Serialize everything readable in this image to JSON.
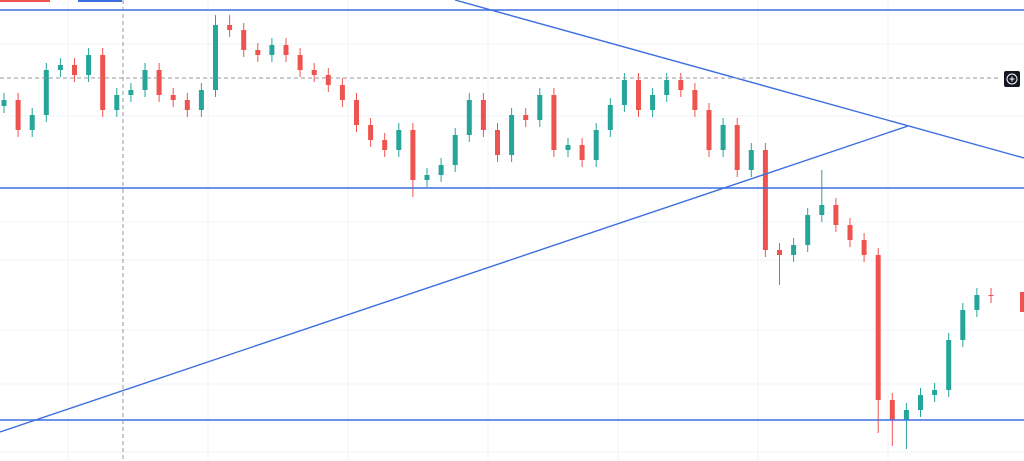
{
  "chart_data": {
    "type": "candlestick",
    "ylim": [
      0,
      461
    ],
    "up_color": "#26a69a",
    "down_color": "#ef5350",
    "open": [
      355,
      361,
      331,
      346,
      391,
      396,
      386,
      406,
      351,
      366,
      371,
      391,
      366,
      361,
      351,
      371,
      436,
      431,
      411,
      406,
      416,
      406,
      391,
      386,
      376,
      361,
      336,
      321,
      311,
      331,
      281,
      286,
      296,
      326,
      361,
      331,
      306,
      346,
      341,
      366,
      311,
      316,
      301,
      331,
      356,
      381,
      351,
      366,
      381,
      371,
      351,
      311,
      336,
      291,
      311,
      211,
      206,
      216,
      246,
      256,
      236,
      221,
      206,
      61,
      41,
      51,
      66,
      71,
      121,
      151,
      166
    ],
    "high": [
      368,
      368,
      353,
      398,
      403,
      403,
      413,
      413,
      373,
      378,
      398,
      398,
      373,
      368,
      378,
      446,
      446,
      438,
      418,
      423,
      423,
      413,
      398,
      393,
      383,
      368,
      343,
      328,
      338,
      338,
      293,
      303,
      333,
      368,
      368,
      338,
      353,
      353,
      373,
      373,
      323,
      323,
      338,
      363,
      388,
      388,
      373,
      388,
      388,
      378,
      358,
      343,
      343,
      318,
      318,
      218,
      223,
      253,
      291,
      263,
      243,
      228,
      213,
      68,
      58,
      73,
      78,
      128,
      158,
      173,
      173
    ],
    "low": [
      348,
      324,
      324,
      339,
      384,
      379,
      379,
      344,
      344,
      359,
      364,
      359,
      354,
      344,
      344,
      364,
      424,
      404,
      399,
      399,
      399,
      384,
      379,
      369,
      354,
      329,
      314,
      304,
      304,
      264,
      274,
      279,
      289,
      319,
      324,
      299,
      299,
      334,
      334,
      304,
      304,
      294,
      294,
      324,
      349,
      344,
      344,
      359,
      364,
      344,
      304,
      304,
      284,
      284,
      204,
      176,
      199,
      209,
      239,
      229,
      214,
      199,
      28,
      15,
      12,
      44,
      59,
      64,
      114,
      144,
      158
    ],
    "close": [
      361,
      331,
      346,
      391,
      396,
      386,
      406,
      351,
      366,
      371,
      391,
      366,
      361,
      351,
      371,
      436,
      431,
      411,
      406,
      416,
      406,
      391,
      386,
      376,
      361,
      336,
      321,
      311,
      331,
      281,
      286,
      296,
      326,
      361,
      331,
      306,
      346,
      341,
      366,
      311,
      316,
      301,
      331,
      356,
      381,
      351,
      366,
      381,
      371,
      351,
      311,
      336,
      291,
      311,
      211,
      206,
      216,
      246,
      256,
      236,
      221,
      206,
      61,
      41,
      51,
      66,
      71,
      121,
      151,
      166,
      165
    ]
  }
}
